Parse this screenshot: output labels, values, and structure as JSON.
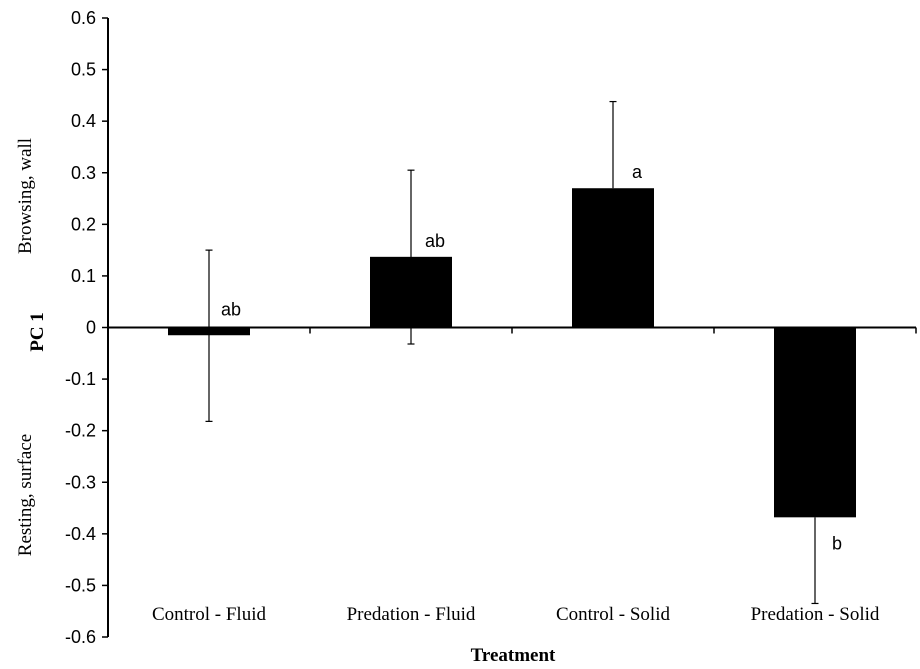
{
  "chart_data": {
    "type": "bar",
    "categories": [
      "Control - Fluid",
      "Predation - Fluid",
      "Control - Solid",
      "Predation - Solid"
    ],
    "values": [
      -0.015,
      0.137,
      0.27,
      -0.368
    ],
    "error_upper": [
      0.15,
      0.305,
      0.438,
      -0.368
    ],
    "error_lower": [
      -0.182,
      -0.032,
      0.27,
      -0.535
    ],
    "annotations": [
      "ab",
      "ab",
      "a",
      "b"
    ],
    "xlabel": "Treatment",
    "ylabel": "PC 1",
    "ylabel_upper": "Browsing, wall",
    "ylabel_lower": "Resting, surface",
    "ylim": [
      -0.6,
      0.6
    ],
    "yticks": [
      "0.6",
      "0.5",
      "0.4",
      "0.3",
      "0.2",
      "0.1",
      "0",
      "-0.1",
      "-0.2",
      "-0.3",
      "-0.4",
      "-0.5",
      "-0.6"
    ],
    "grid": false,
    "bar_color": "#000000"
  }
}
